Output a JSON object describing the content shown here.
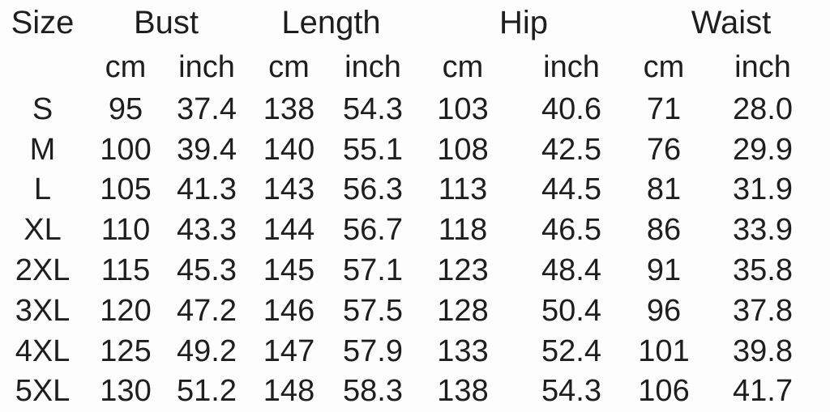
{
  "colors": {
    "text": "#1e1e1e",
    "background": "#fdfdfd"
  },
  "chart_data": {
    "type": "table",
    "title": "",
    "size_column_header": "Size",
    "column_groups": [
      {
        "label": "Bust"
      },
      {
        "label": "Length"
      },
      {
        "label": "Hip"
      },
      {
        "label": "Waist"
      }
    ],
    "unit_headers": {
      "cm": "cm",
      "inch": "inch"
    },
    "columns": [
      "Size",
      "Bust cm",
      "Bust inch",
      "Length cm",
      "Length inch",
      "Hip cm",
      "Hip inch",
      "Waist cm",
      "Waist inch"
    ],
    "rows": [
      {
        "size": "S",
        "bust_cm": "95",
        "bust_inch": "37.4",
        "length_cm": "138",
        "length_inch": "54.3",
        "hip_cm": "103",
        "hip_inch": "40.6",
        "waist_cm": "71",
        "waist_inch": "28.0"
      },
      {
        "size": "M",
        "bust_cm": "100",
        "bust_inch": "39.4",
        "length_cm": "140",
        "length_inch": "55.1",
        "hip_cm": "108",
        "hip_inch": "42.5",
        "waist_cm": "76",
        "waist_inch": "29.9"
      },
      {
        "size": "L",
        "bust_cm": "105",
        "bust_inch": "41.3",
        "length_cm": "143",
        "length_inch": "56.3",
        "hip_cm": "113",
        "hip_inch": "44.5",
        "waist_cm": "81",
        "waist_inch": "31.9"
      },
      {
        "size": "XL",
        "bust_cm": "110",
        "bust_inch": "43.3",
        "length_cm": "144",
        "length_inch": "56.7",
        "hip_cm": "118",
        "hip_inch": "46.5",
        "waist_cm": "86",
        "waist_inch": "33.9"
      },
      {
        "size": "2XL",
        "bust_cm": "115",
        "bust_inch": "45.3",
        "length_cm": "145",
        "length_inch": "57.1",
        "hip_cm": "123",
        "hip_inch": "48.4",
        "waist_cm": "91",
        "waist_inch": "35.8"
      },
      {
        "size": "3XL",
        "bust_cm": "120",
        "bust_inch": "47.2",
        "length_cm": "146",
        "length_inch": "57.5",
        "hip_cm": "128",
        "hip_inch": "50.4",
        "waist_cm": "96",
        "waist_inch": "37.8"
      },
      {
        "size": "4XL",
        "bust_cm": "125",
        "bust_inch": "49.2",
        "length_cm": "147",
        "length_inch": "57.9",
        "hip_cm": "133",
        "hip_inch": "52.4",
        "waist_cm": "101",
        "waist_inch": "39.8"
      },
      {
        "size": "5XL",
        "bust_cm": "130",
        "bust_inch": "51.2",
        "length_cm": "148",
        "length_inch": "58.3",
        "hip_cm": "138",
        "hip_inch": "54.3",
        "waist_cm": "106",
        "waist_inch": "41.7"
      }
    ]
  }
}
